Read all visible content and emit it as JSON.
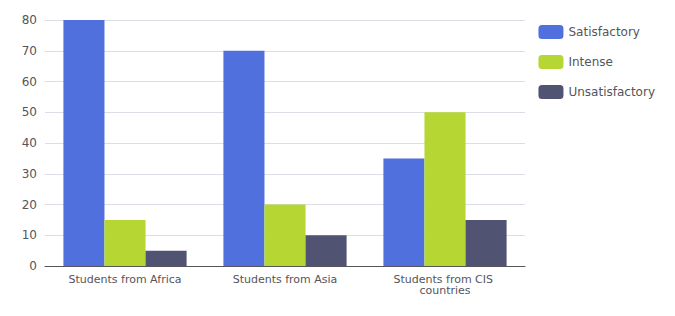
{
  "chart_data": {
    "type": "bar",
    "categories": [
      "Students from Africa",
      "Students from Asia",
      "Students from CIS countries"
    ],
    "series": [
      {
        "name": "Satisfactory",
        "values": [
          80,
          70,
          35
        ]
      },
      {
        "name": "Intense",
        "values": [
          15,
          20,
          50
        ]
      },
      {
        "name": "Unsatisfactory",
        "values": [
          5,
          10,
          15
        ]
      }
    ],
    "ylim": [
      0,
      80
    ],
    "yticks": [
      0,
      10,
      20,
      30,
      40,
      50,
      60,
      70,
      80
    ],
    "grid": true,
    "legend": "right"
  }
}
